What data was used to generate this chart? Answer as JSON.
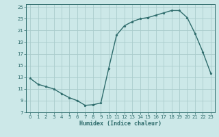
{
  "xlabel": "Humidex (Indice chaleur)",
  "background_color": "#cce8e8",
  "grid_color": "#aacccc",
  "line_color": "#2d6b6b",
  "marker_color": "#2d6b6b",
  "y_values": [
    12.8,
    11.8,
    11.4,
    11.0,
    10.2,
    9.5,
    9.0,
    8.2,
    8.3,
    8.6,
    14.5,
    20.2,
    21.8,
    22.5,
    23.0,
    23.2,
    23.6,
    24.0,
    24.4,
    24.4,
    23.2,
    20.5,
    17.3,
    13.7
  ],
  "xlim": [
    -0.5,
    23.5
  ],
  "ylim": [
    7,
    25.5
  ],
  "yticks": [
    7,
    9,
    11,
    13,
    15,
    17,
    19,
    21,
    23,
    25
  ],
  "xticks": [
    0,
    1,
    2,
    3,
    4,
    5,
    6,
    7,
    8,
    9,
    10,
    11,
    12,
    13,
    14,
    15,
    16,
    17,
    18,
    19,
    20,
    21,
    22,
    23
  ],
  "tick_fontsize": 5,
  "xlabel_fontsize": 6,
  "linewidth": 1.0,
  "markersize": 2.5
}
